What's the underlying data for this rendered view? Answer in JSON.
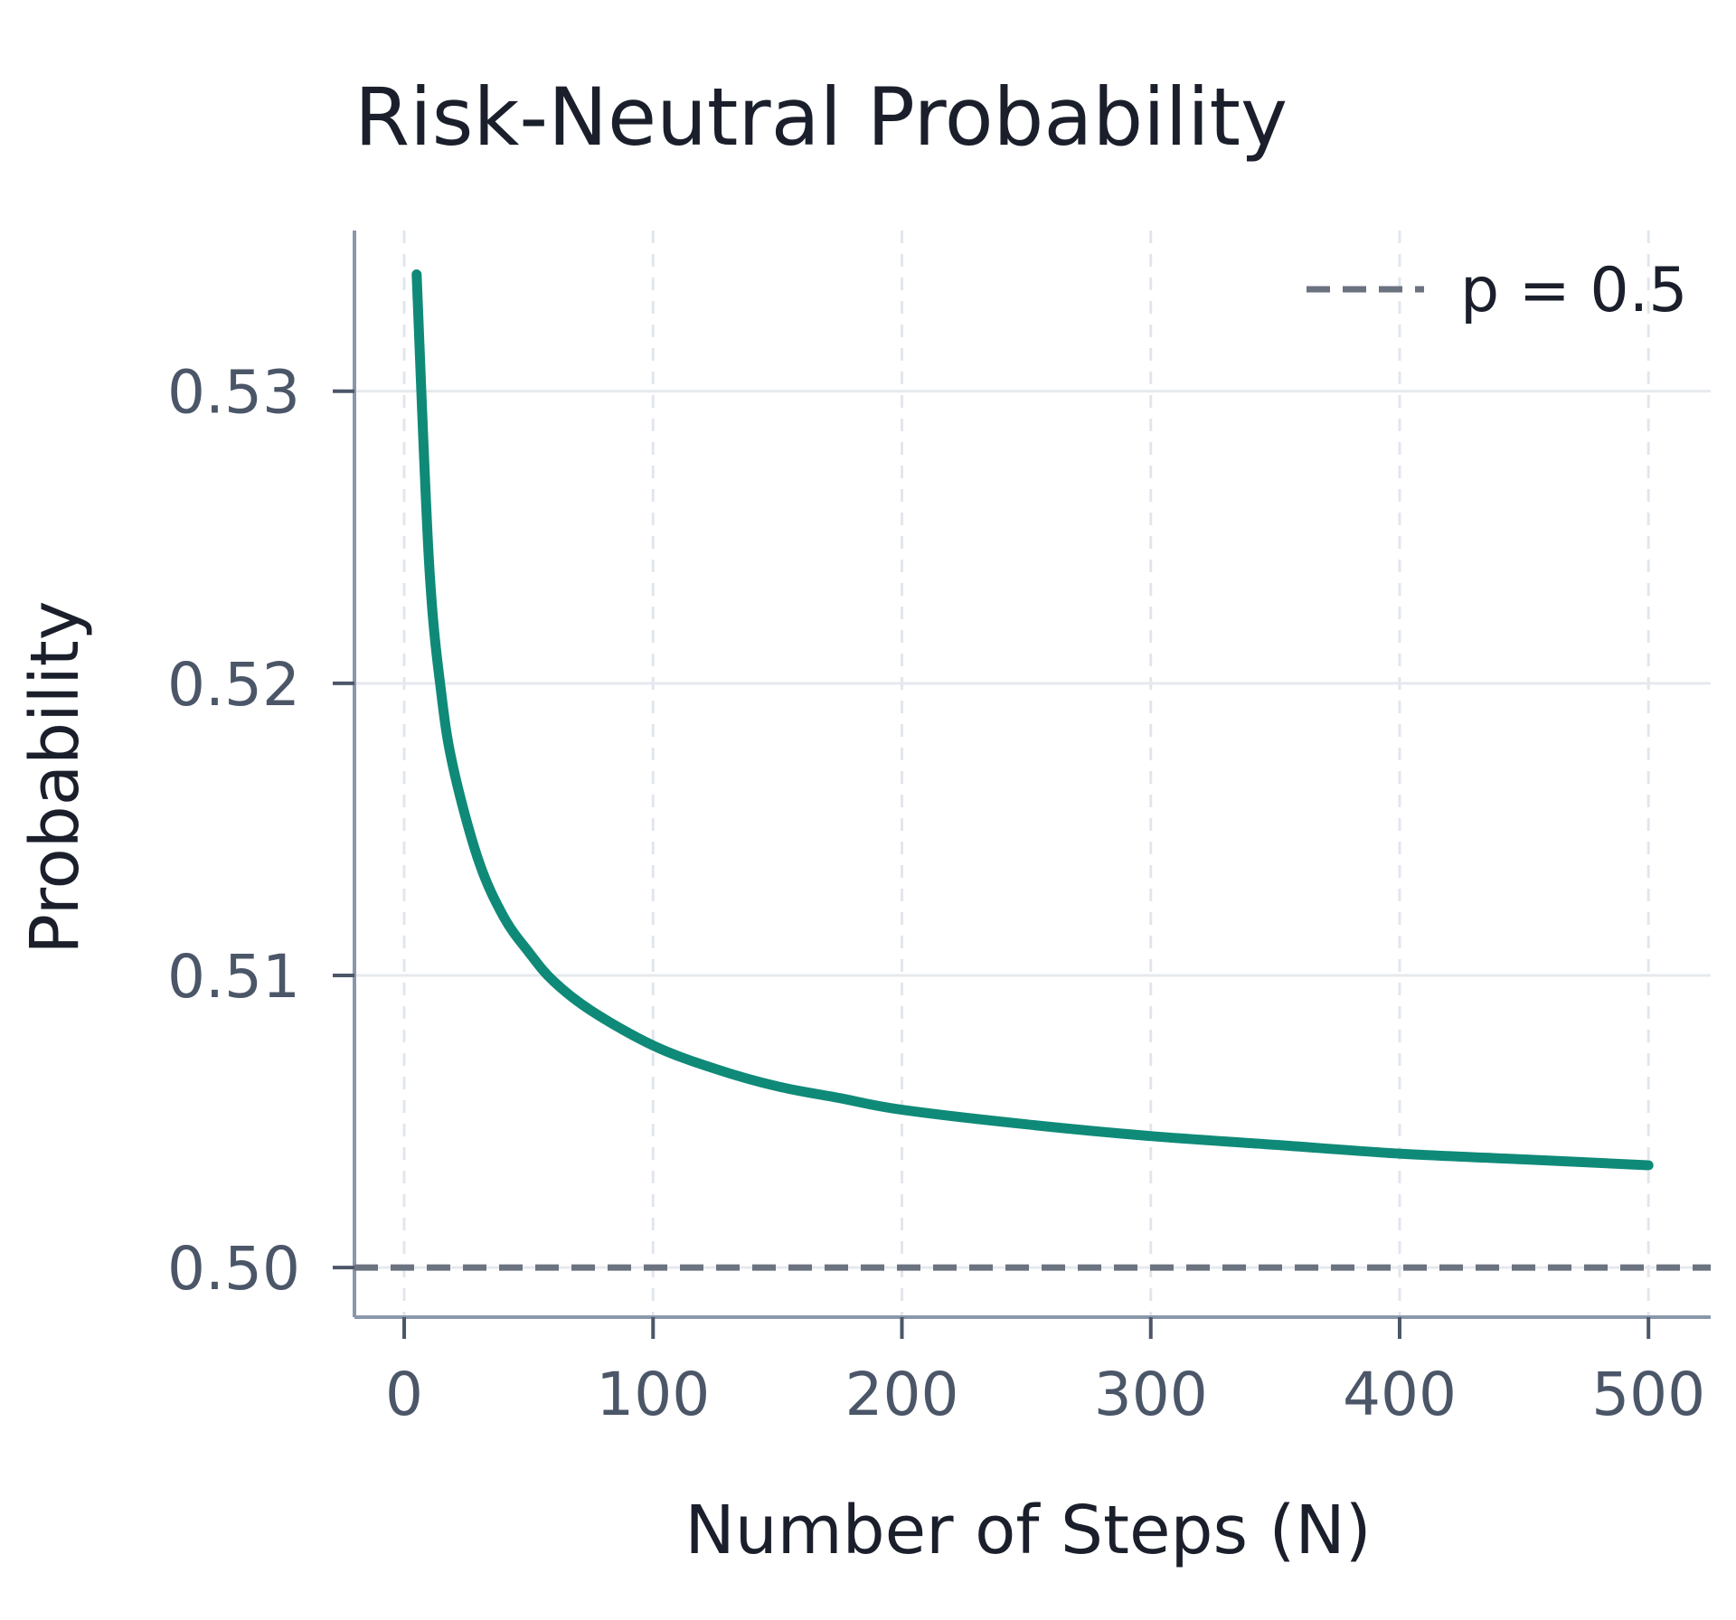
{
  "chart_data": {
    "type": "line",
    "title": "Risk-Neutral Probability",
    "xlabel": "Number of Steps (N)",
    "ylabel": "Probability",
    "xlim": [
      -20,
      525
    ],
    "ylim": [
      0.4983,
      0.5355
    ],
    "x_ticks": [
      0,
      100,
      200,
      300,
      400,
      500
    ],
    "x_tick_labels": [
      "0",
      "100",
      "200",
      "300",
      "400",
      "500"
    ],
    "y_ticks": [
      0.5,
      0.51,
      0.52,
      0.53
    ],
    "y_tick_labels": [
      "0.50",
      "0.51",
      "0.52",
      "0.53"
    ],
    "grid": {
      "x": "dashed",
      "y": "solid"
    },
    "legend": {
      "placement": "top-right",
      "entries": [
        {
          "label": "p = 0.5",
          "style": "dashed",
          "color": "#6b7280"
        }
      ]
    },
    "reference_line": {
      "y": 0.5,
      "style": "dashed",
      "color": "#6b7280"
    },
    "series": [
      {
        "color": "#0f8a78",
        "x": [
          5,
          10,
          15,
          20,
          30,
          40,
          50,
          60,
          75,
          100,
          125,
          150,
          175,
          200,
          250,
          300,
          350,
          400,
          450,
          500
        ],
        "y": [
          0.534,
          0.5241,
          0.5196,
          0.517,
          0.5139,
          0.512,
          0.5108,
          0.5098,
          0.5088,
          0.5076,
          0.5068,
          0.5062,
          0.5058,
          0.5054,
          0.5049,
          0.5045,
          0.5042,
          0.5039,
          0.5037,
          0.5035
        ]
      }
    ]
  }
}
